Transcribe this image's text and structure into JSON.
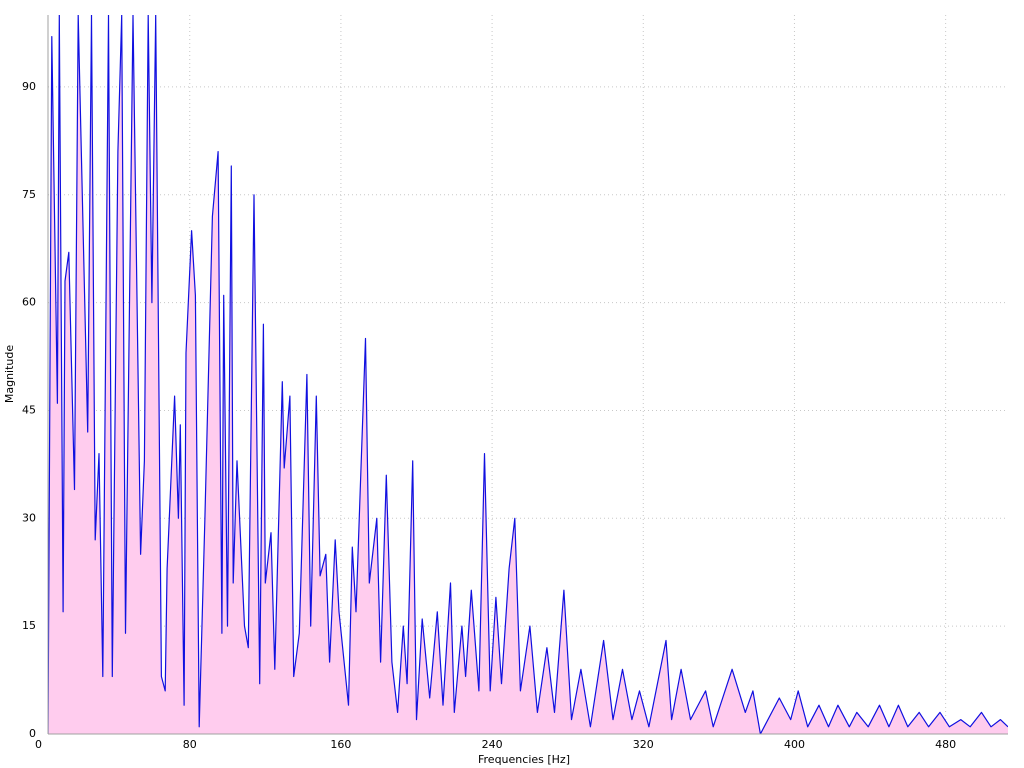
{
  "chart_data": {
    "type": "area",
    "x_label": "Frequencies [Hz]",
    "y_label": "Magnitude",
    "x": [
      5,
      7,
      10,
      11,
      13,
      14,
      16,
      19,
      21,
      26,
      28,
      30,
      32,
      34,
      37,
      39,
      42,
      44,
      46,
      50,
      54,
      56,
      58,
      60,
      62,
      65,
      67,
      68,
      72,
      74,
      75,
      77,
      78,
      81,
      83,
      85,
      88,
      92,
      95,
      97,
      98,
      100,
      102,
      103,
      105,
      109,
      111,
      114,
      117,
      119,
      120,
      123,
      125,
      129,
      130,
      133,
      135,
      138,
      142,
      144,
      147,
      149,
      152,
      154,
      157,
      159,
      164,
      166,
      168,
      173,
      175,
      179,
      181,
      184,
      187,
      190,
      193,
      195,
      198,
      200,
      203,
      207,
      211,
      214,
      218,
      220,
      224,
      226,
      229,
      233,
      236,
      239,
      242,
      245,
      249,
      252,
      255,
      260,
      264,
      269,
      273,
      278,
      282,
      287,
      292,
      299,
      304,
      309,
      314,
      318,
      323,
      332,
      335,
      340,
      345,
      353,
      357,
      367,
      374,
      378,
      382,
      392,
      398,
      402,
      407,
      413,
      418,
      423,
      429,
      433,
      439,
      445,
      450,
      455,
      460,
      466,
      471,
      477,
      482,
      488,
      493,
      499,
      504,
      509,
      513
    ],
    "values": [
      0,
      97,
      46,
      100,
      17,
      63,
      67,
      34,
      100,
      42,
      100,
      27,
      39,
      8,
      100,
      8,
      81,
      100,
      14,
      100,
      25,
      38,
      100,
      60,
      100,
      8,
      6,
      23,
      47,
      30,
      43,
      4,
      53,
      70,
      61,
      1,
      30,
      72,
      81,
      14,
      61,
      15,
      79,
      21,
      38,
      15,
      12,
      75,
      7,
      57,
      21,
      28,
      9,
      49,
      37,
      47,
      8,
      14,
      50,
      15,
      47,
      22,
      25,
      10,
      27,
      17,
      4,
      26,
      17,
      55,
      21,
      30,
      10,
      36,
      10,
      3,
      15,
      7,
      38,
      2,
      16,
      5,
      17,
      4,
      21,
      3,
      15,
      8,
      20,
      6,
      39,
      6,
      19,
      7,
      23,
      30,
      6,
      15,
      3,
      12,
      3,
      20,
      2,
      9,
      1,
      13,
      2,
      9,
      2,
      6,
      1,
      13,
      2,
      9,
      2,
      6,
      1,
      9,
      3,
      6,
      0,
      5,
      2,
      6,
      1,
      4,
      1,
      4,
      1,
      3,
      1,
      4,
      1,
      4,
      1,
      3,
      1,
      3,
      1,
      2,
      1,
      3,
      1,
      2,
      1
    ],
    "color": "#1010e0",
    "fill_color": "#ffccee",
    "xlim": [
      5,
      513
    ],
    "xticks": [
      0,
      80,
      160,
      240,
      320,
      400,
      480
    ],
    "ylim": [
      0,
      100
    ],
    "yticks": [
      0,
      15,
      30,
      45,
      60,
      75,
      90
    ],
    "grid": true
  }
}
